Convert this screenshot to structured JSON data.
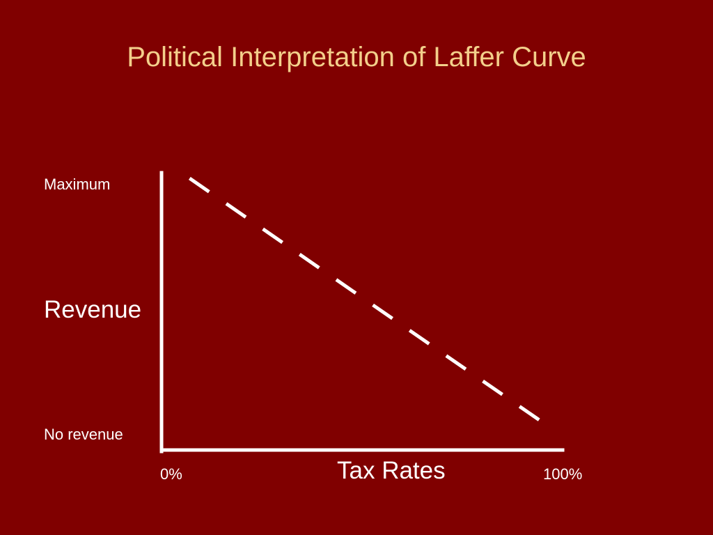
{
  "slide": {
    "title": "Political Interpretation of Laffer Curve"
  },
  "chart_data": {
    "type": "line",
    "title": "Political Interpretation of Laffer Curve",
    "xlabel": "Tax Rates",
    "ylabel": "Revenue",
    "x_tick_labels": [
      "0%",
      "100%"
    ],
    "y_tick_labels": [
      "No revenue",
      "Maximum"
    ],
    "xlim": [
      0,
      100
    ],
    "ylim": [
      0,
      100
    ],
    "grid": false,
    "series": [
      {
        "line_style": "dashed",
        "color": "#ffffff",
        "x": [
          7,
          96
        ],
        "y": [
          98,
          9
        ]
      }
    ]
  },
  "colors": {
    "background": "#800000",
    "title": "#f3cf8b",
    "text": "#ffffff",
    "axes": "#ffffff"
  }
}
